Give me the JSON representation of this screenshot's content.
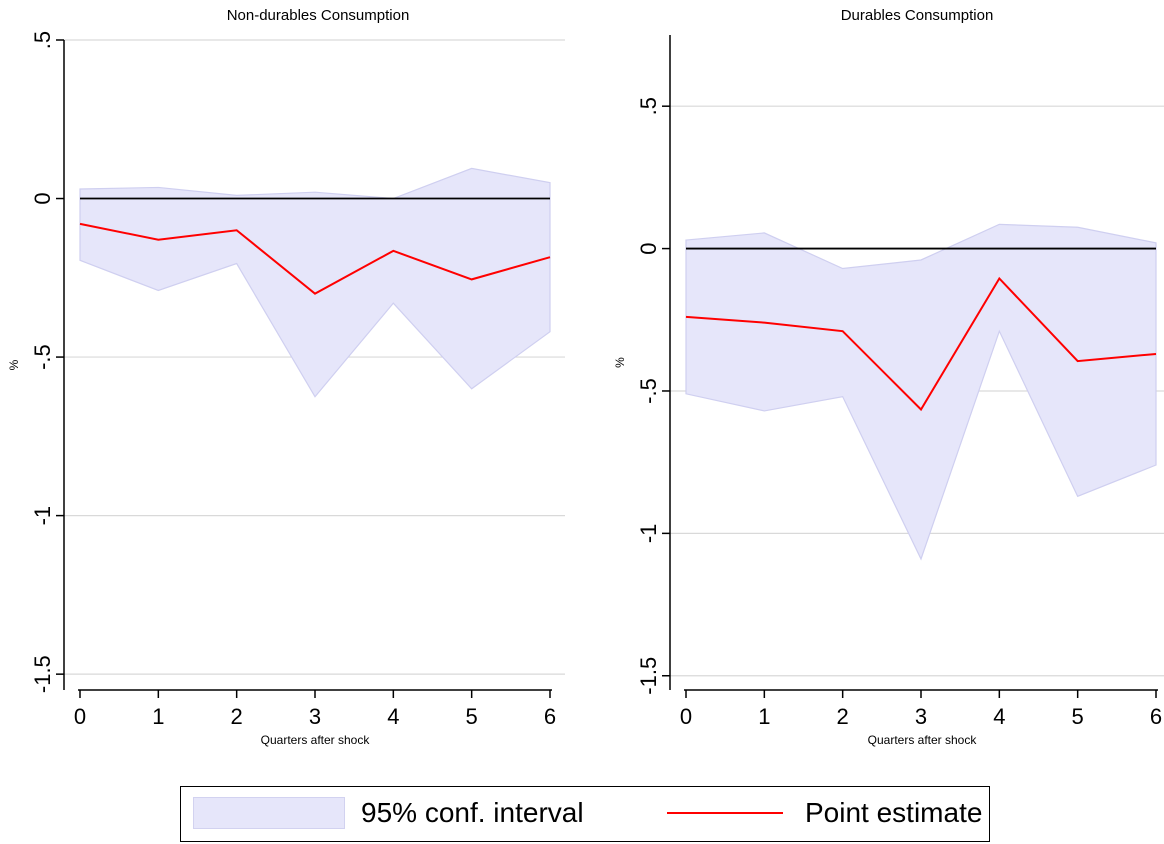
{
  "chart_data": [
    {
      "type": "line",
      "title": "Non-durables Consumption",
      "xlabel": "Quarters after shock",
      "ylabel": "%",
      "x": [
        0,
        1,
        2,
        3,
        4,
        5,
        6
      ],
      "xticks": [
        "0",
        "1",
        "2",
        "3",
        "4",
        "5",
        "6"
      ],
      "yticks": [
        ".5",
        "0",
        "-.5",
        "-1",
        "-1.5"
      ],
      "ytick_values": [
        0.5,
        0,
        -0.5,
        -1,
        -1.5
      ],
      "xlim": [
        0,
        6
      ],
      "ylim": [
        -1.55,
        0.5
      ],
      "grid": true,
      "zero_line": 0,
      "series": [
        {
          "name": "Point estimate",
          "values": [
            -0.08,
            -0.13,
            -0.1,
            -0.3,
            -0.165,
            -0.255,
            -0.185
          ],
          "color": "#ff0000"
        }
      ],
      "band": {
        "name": "95% conf. interval",
        "lower": [
          -0.195,
          -0.29,
          -0.205,
          -0.625,
          -0.33,
          -0.6,
          -0.42
        ],
        "upper": [
          0.03,
          0.035,
          0.01,
          0.02,
          0.0,
          0.095,
          0.05
        ],
        "color": "#e6e6fa"
      }
    },
    {
      "type": "line",
      "title": "Durables Consumption",
      "xlabel": "Quarters after shock",
      "ylabel": "%",
      "x": [
        0,
        1,
        2,
        3,
        4,
        5,
        6
      ],
      "xticks": [
        "0",
        "1",
        "2",
        "3",
        "4",
        "5",
        "6"
      ],
      "yticks": [
        ".5",
        "0",
        "-.5",
        "-1",
        "-1.5"
      ],
      "ytick_values": [
        0.5,
        0,
        -0.5,
        -1,
        -1.5
      ],
      "xlim": [
        0,
        6
      ],
      "ylim": [
        -1.55,
        0.75
      ],
      "grid": true,
      "zero_line": 0,
      "series": [
        {
          "name": "Point estimate",
          "values": [
            -0.24,
            -0.26,
            -0.29,
            -0.565,
            -0.105,
            -0.395,
            -0.37
          ],
          "color": "#ff0000"
        }
      ],
      "band": {
        "name": "95% conf. interval",
        "lower": [
          -0.51,
          -0.57,
          -0.52,
          -1.09,
          -0.29,
          -0.87,
          -0.76
        ],
        "upper": [
          0.03,
          0.055,
          -0.07,
          -0.04,
          0.085,
          0.075,
          0.02
        ],
        "color": "#e6e6fa"
      }
    }
  ],
  "legend": {
    "band_label": "95% conf. interval",
    "line_label": "Point estimate"
  }
}
